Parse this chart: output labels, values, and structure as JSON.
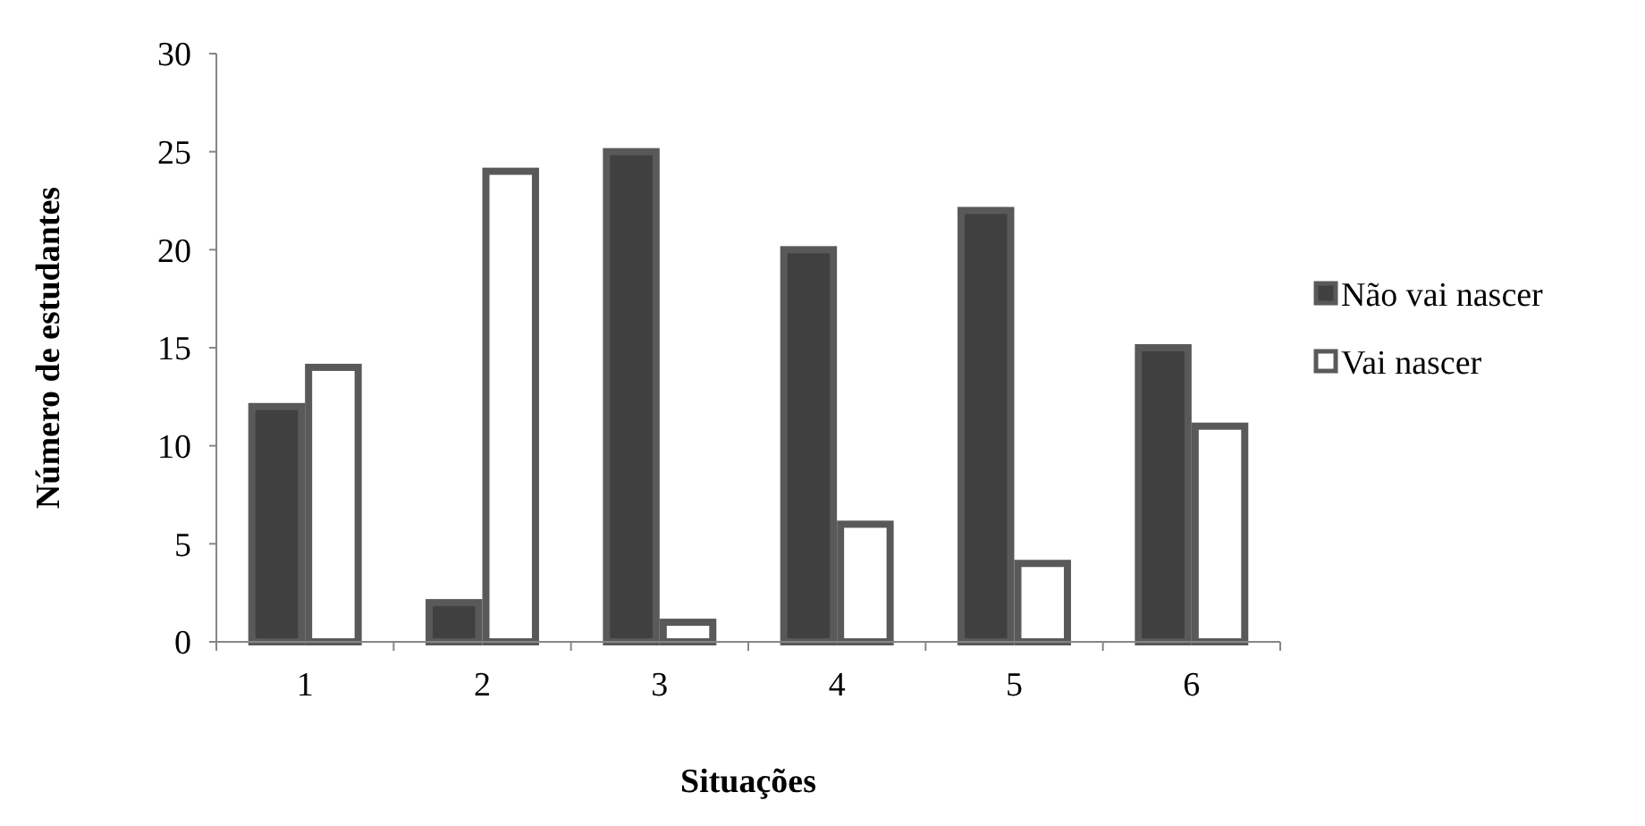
{
  "chart_data": {
    "type": "bar",
    "xlabel": "Situações",
    "ylabel": "Número de estudantes",
    "categories": [
      "1",
      "2",
      "3",
      "4",
      "5",
      "6"
    ],
    "series": [
      {
        "name": "Não vai nascer",
        "color": "#404040",
        "values": [
          12,
          2,
          25,
          20,
          22,
          15
        ]
      },
      {
        "name": "Vai nascer",
        "color": "#ffffff",
        "values": [
          14,
          24,
          1,
          6,
          4,
          11
        ]
      }
    ],
    "ylim": [
      0,
      30
    ],
    "yticks": [
      0,
      5,
      10,
      15,
      20,
      25,
      30
    ],
    "legend": "right",
    "grid": false
  }
}
